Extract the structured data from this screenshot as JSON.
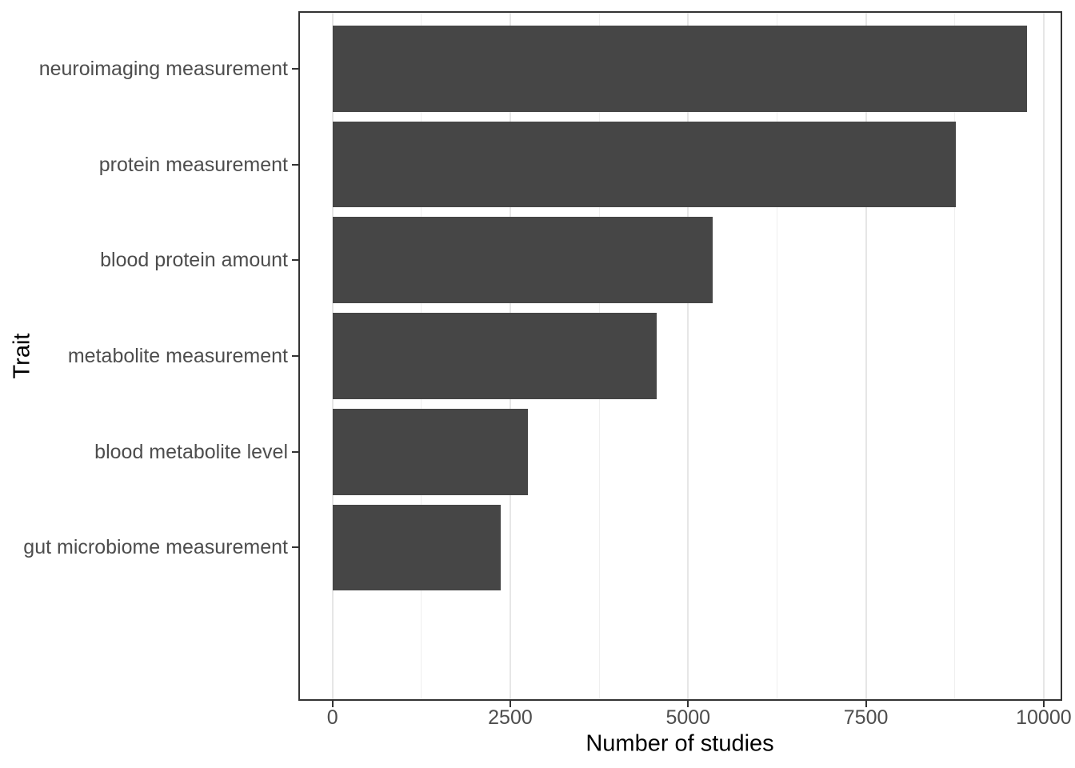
{
  "chart_data": {
    "type": "bar",
    "orientation": "horizontal",
    "title": "",
    "xlabel": "Number of studies",
    "ylabel": "Trait",
    "categories": [
      "neuroimaging measurement",
      "protein measurement",
      "blood protein amount",
      "metabolite measurement",
      "blood metabolite level",
      "gut microbiome measurement"
    ],
    "values": [
      9770,
      8760,
      5340,
      4560,
      2750,
      2370
    ],
    "xticks": [
      0,
      2500,
      5000,
      7500,
      10000
    ],
    "xtick_labels": [
      "0",
      "2500",
      "5000",
      "7500",
      "10000"
    ],
    "minor_xticks": [
      1250,
      3750,
      6250,
      8750
    ],
    "xlim": [
      -480,
      10260
    ],
    "bar_width_fraction": 0.9,
    "category_expand": 0.6,
    "grid": {
      "vertical_major": true,
      "vertical_minor": true,
      "horizontal": false
    },
    "legend": "none"
  },
  "style": {
    "bar_fill": "#464646",
    "panel_border_color": "#333333",
    "grid_major_color": "#e6e6e6",
    "grid_minor_color": "#efefef",
    "tick_mark_color": "#333333",
    "tick_label_color": "#4d4d4d",
    "axis_title_color": "#000000",
    "background": "#ffffff"
  }
}
